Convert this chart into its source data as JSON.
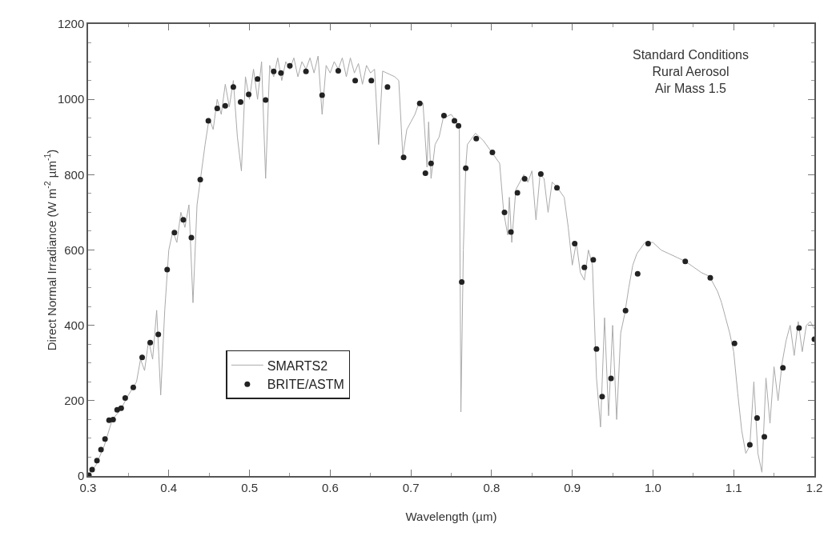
{
  "chart_data": {
    "type": "line",
    "xlabel": "Wavelength (µm)",
    "ylabel": "Direct Normal Irradiance (W m$^{-2}$ µm$^{-1}$)",
    "annotations": [
      "Standard Conditions\nRural Aerosol\nAir Mass 1.5"
    ],
    "xlim": [
      0.3,
      1.2
    ],
    "xticks": [
      0.3,
      0.4,
      0.5,
      0.6,
      0.7,
      0.8,
      0.9,
      {
        "value": 1,
        "label": "1.0"
      },
      1.1,
      1.2
    ],
    "ylim": [
      0,
      1200
    ],
    "yticks": [
      0,
      200,
      400,
      600,
      800,
      1000,
      1200
    ],
    "grid": false,
    "legend": "bottom left",
    "series": [
      {
        "name": "SMARTS2",
        "color": "#aaaaaa",
        "marker": "none",
        "line_style": "solid",
        "x": [
          0.3,
          0.31,
          0.32,
          0.33,
          0.34,
          0.35,
          0.36,
          0.365,
          0.37,
          0.375,
          0.38,
          0.385,
          0.39,
          0.395,
          0.4,
          0.405,
          0.41,
          0.415,
          0.42,
          0.425,
          0.43,
          0.435,
          0.44,
          0.445,
          0.45,
          0.455,
          0.46,
          0.465,
          0.47,
          0.475,
          0.48,
          0.485,
          0.49,
          0.495,
          0.5,
          0.505,
          0.51,
          0.515,
          0.52,
          0.525,
          0.53,
          0.535,
          0.54,
          0.545,
          0.55,
          0.555,
          0.56,
          0.565,
          0.57,
          0.575,
          0.58,
          0.585,
          0.59,
          0.595,
          0.6,
          0.605,
          0.61,
          0.615,
          0.62,
          0.625,
          0.63,
          0.635,
          0.64,
          0.645,
          0.65,
          0.655,
          0.66,
          0.665,
          0.67,
          0.68,
          0.685,
          0.69,
          0.695,
          0.7,
          0.705,
          0.71,
          0.715,
          0.72,
          0.722,
          0.725,
          0.73,
          0.735,
          0.74,
          0.75,
          0.755,
          0.76,
          0.762,
          0.765,
          0.768,
          0.77,
          0.78,
          0.79,
          0.8,
          0.81,
          0.815,
          0.82,
          0.822,
          0.825,
          0.83,
          0.835,
          0.84,
          0.845,
          0.85,
          0.855,
          0.86,
          0.865,
          0.87,
          0.875,
          0.88,
          0.89,
          0.895,
          0.9,
          0.905,
          0.91,
          0.915,
          0.92,
          0.925,
          0.93,
          0.935,
          0.94,
          0.945,
          0.95,
          0.955,
          0.96,
          0.965,
          0.97,
          0.975,
          0.98,
          0.99,
          1.0,
          1.01,
          1.02,
          1.03,
          1.04,
          1.05,
          1.06,
          1.07,
          1.075,
          1.08,
          1.085,
          1.09,
          1.095,
          1.1,
          1.105,
          1.11,
          1.115,
          1.12,
          1.125,
          1.13,
          1.135,
          1.14,
          1.145,
          1.15,
          1.155,
          1.16,
          1.165,
          1.17,
          1.175,
          1.18,
          1.185,
          1.19,
          1.195,
          1.2
        ],
        "values": [
          0,
          30,
          80,
          150,
          175,
          215,
          250,
          310,
          280,
          360,
          310,
          440,
          215,
          440,
          600,
          650,
          620,
          700,
          660,
          720,
          460,
          720,
          800,
          880,
          950,
          920,
          1000,
          960,
          1040,
          980,
          1050,
          900,
          810,
          1060,
          1000,
          1080,
          1000,
          1100,
          790,
          1090,
          1060,
          1110,
          1050,
          1100,
          1080,
          1110,
          1060,
          1100,
          1080,
          1110,
          1070,
          1115,
          960,
          1090,
          1070,
          1100,
          1080,
          1110,
          1060,
          1110,
          1070,
          1095,
          1040,
          1090,
          1070,
          1080,
          880,
          1075,
          1070,
          1060,
          1050,
          850,
          920,
          940,
          960,
          990,
          990,
          820,
          940,
          790,
          880,
          900,
          950,
          960,
          945,
          920,
          170,
          600,
          820,
          880,
          910,
          890,
          860,
          830,
          700,
          640,
          740,
          620,
          760,
          780,
          800,
          780,
          810,
          680,
          800,
          790,
          700,
          780,
          770,
          740,
          660,
          560,
          620,
          540,
          520,
          600,
          560,
          260,
          130,
          420,
          160,
          400,
          150,
          380,
          430,
          500,
          560,
          590,
          620,
          620,
          600,
          590,
          580,
          570,
          555,
          540,
          530,
          510,
          490,
          460,
          420,
          380,
          330,
          220,
          120,
          60,
          80,
          250,
          60,
          10,
          260,
          140,
          290,
          200,
          300,
          360,
          400,
          320,
          410,
          330,
          400,
          410,
          390
        ]
      },
      {
        "name": "BRITE/ASTM",
        "type": "scatter",
        "color": "#222222",
        "marker": "circle",
        "x": [
          0.301,
          0.305,
          0.311,
          0.316,
          0.321,
          0.326,
          0.331,
          0.336,
          0.341,
          0.346,
          0.356,
          0.367,
          0.377,
          0.387,
          0.398,
          0.407,
          0.418,
          0.428,
          0.439,
          0.449,
          0.46,
          0.47,
          0.48,
          0.489,
          0.499,
          0.51,
          0.52,
          0.53,
          0.539,
          0.55,
          0.57,
          0.59,
          0.61,
          0.631,
          0.651,
          0.671,
          0.691,
          0.711,
          0.718,
          0.725,
          0.741,
          0.754,
          0.759,
          0.763,
          0.768,
          0.781,
          0.801,
          0.816,
          0.824,
          0.832,
          0.841,
          0.861,
          0.881,
          0.903,
          0.915,
          0.926,
          0.93,
          0.937,
          0.948,
          0.966,
          0.981,
          0.994,
          1.04,
          1.071,
          1.101,
          1.12,
          1.129,
          1.138,
          1.161,
          1.181,
          1.2
        ],
        "values": [
          2,
          17,
          41,
          70,
          98,
          148,
          150,
          176,
          180,
          207,
          235,
          315,
          354,
          376,
          548,
          646,
          680,
          633,
          787,
          943,
          976,
          983,
          1033,
          993,
          1013,
          1054,
          998,
          1074,
          1070,
          1089,
          1074,
          1011,
          1076,
          1050,
          1050,
          1033,
          846,
          989,
          804,
          830,
          957,
          943,
          930,
          515,
          817,
          896,
          859,
          700,
          648,
          752,
          789,
          802,
          765,
          617,
          554,
          574,
          337,
          211,
          259,
          439,
          537,
          617,
          570,
          526,
          352,
          83,
          154,
          104,
          287,
          393,
          363
        ]
      }
    ]
  }
}
